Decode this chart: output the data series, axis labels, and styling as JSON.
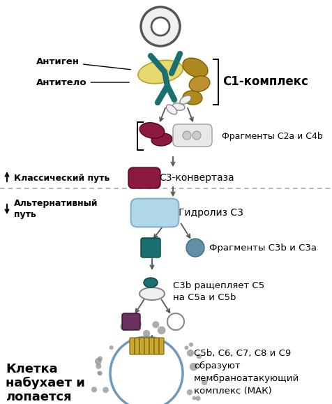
{
  "bg_color": "#ffffff",
  "fig_width": 4.77,
  "fig_height": 5.79,
  "dpi": 100,
  "texts": {
    "antigen_label": "Антиген",
    "antibody_label": "Антитело",
    "c1_complex": "C1-комплекс",
    "fragments_c2a_c4b": "Фрагменты C2a и C4b",
    "classical_path": "Классический путь",
    "c3_convertase": "C3-конвертаза",
    "alternative_path_1": "Альтернативный",
    "alternative_path_2": "путь",
    "c3_hydrolysis": "Гидролиз C3",
    "fragments_c3b_c3a": "Фрагменты C3b и C3a",
    "c3b_cleaves_1": "C3b ращепляет C5",
    "c3b_cleaves_2": "на C5a и C5b",
    "cell_swells_1": "Клетка",
    "cell_swells_2": "набухает и",
    "cell_swells_3": "лопается",
    "mac_1": "C5b, C6, C7, C8 и C9",
    "mac_2": "образуют",
    "mac_3": "мембраноатакующий",
    "mac_4": "комплекс (МАК)"
  },
  "colors": {
    "dark_teal": "#1a7070",
    "mid_teal": "#3a9898",
    "light_teal_blue": "#b0d8e8",
    "gold": "#b08820",
    "dark_gold": "#806000",
    "crimson": "#8c1a40",
    "purple_mauve": "#6a3060",
    "cell_blue": "#7098b8",
    "mac_gold": "#c8a830",
    "arrow_color": "#555555",
    "divider_color": "#aaaaaa",
    "black": "#000000",
    "white": "#ffffff",
    "gray_dot": "#909090"
  }
}
